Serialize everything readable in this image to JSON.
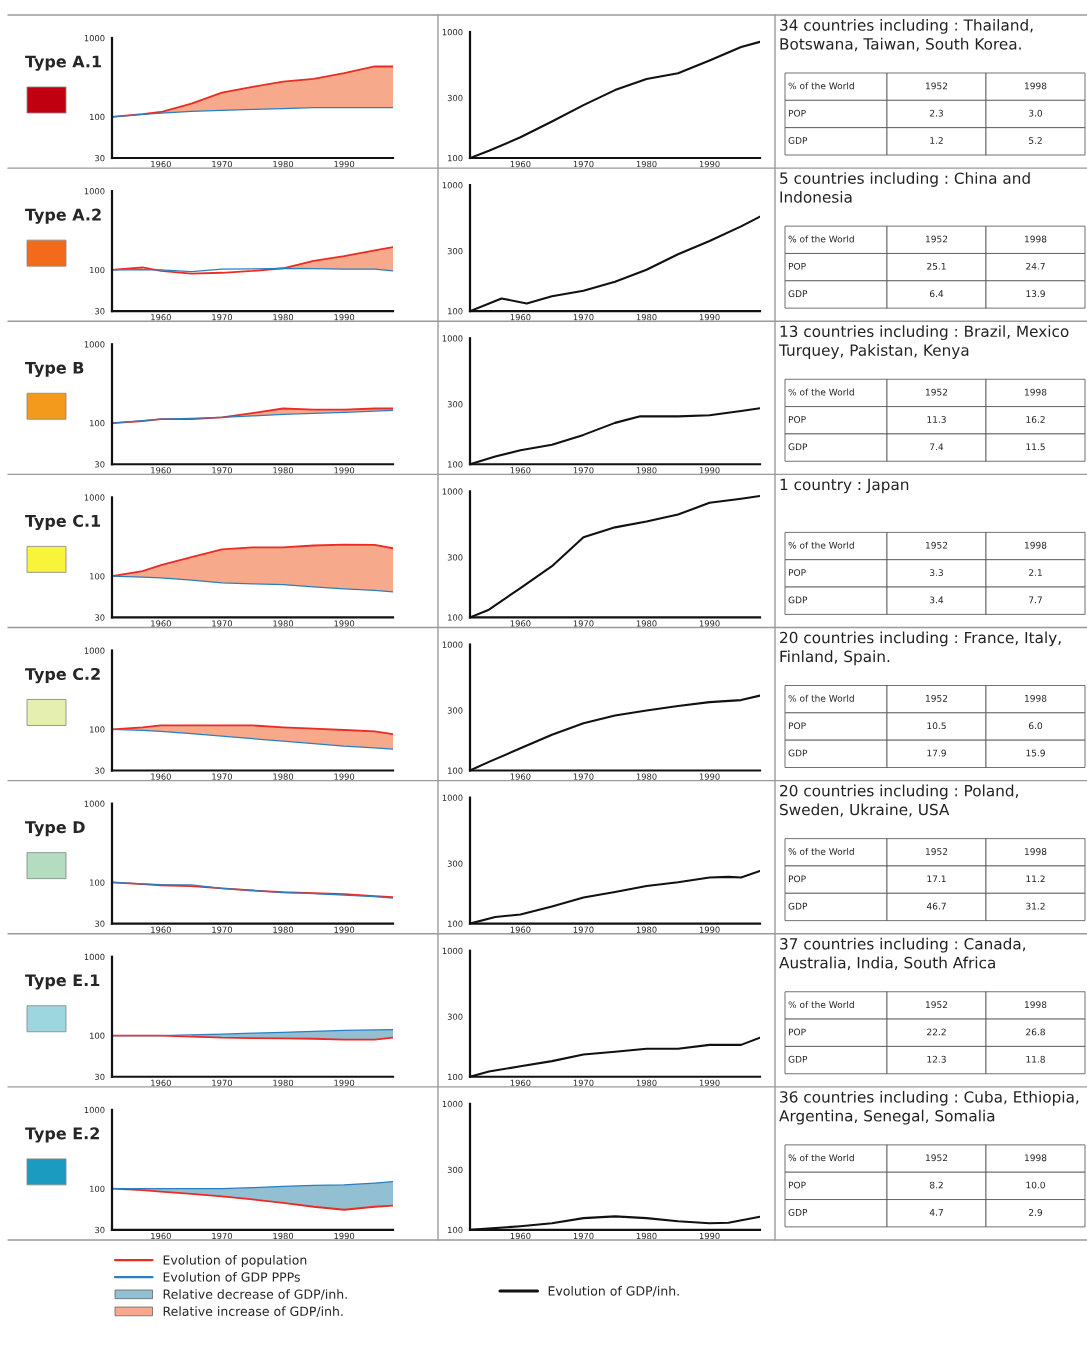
{
  "chart_data": [
    {
      "type": "line",
      "title": "Type A.1",
      "colors": [
        "#c00010",
        "#f7a98b",
        "#93bfd3"
      ],
      "x": [
        1952,
        1957,
        1960,
        1965,
        1970,
        1975,
        1980,
        1985,
        1990,
        1995,
        1998
      ],
      "log": true,
      "xlim": [
        1952,
        1998
      ],
      "ylim": [
        30,
        1000
      ],
      "xticks": [
        1960,
        1970,
        1980,
        1990
      ],
      "yticks": [
        30,
        100,
        1000
      ],
      "grid": false,
      "series": [
        {
          "color": "#ec2b24",
          "values": [
            100,
            108,
            115,
            147,
            203,
            240,
            279,
            302,
            358,
            435,
            435
          ],
          "lower": [
            100,
            107,
            111,
            117,
            121,
            124,
            127,
            131,
            131,
            131,
            131
          ],
          "upper": [
            100,
            108,
            115,
            147,
            203,
            240,
            279,
            302,
            358,
            435,
            435
          ]
        },
        {
          "color": "#2b7fc1",
          "values": [
            100,
            107,
            111,
            117,
            121,
            124,
            127,
            131,
            131,
            131,
            131
          ]
        }
      ]
    },
    {
      "type": "line",
      "x": [
        1952,
        1955,
        1960,
        1965,
        1970,
        1975,
        1980,
        1985,
        1990,
        1995,
        1998
      ],
      "log": true,
      "xlim": [
        1952,
        1998
      ],
      "ylim": [
        100,
        1000
      ],
      "xticks": [
        1960,
        1970,
        1980,
        1990
      ],
      "yticks": [
        100,
        300,
        1000
      ],
      "grid": false,
      "series": [
        {
          "color": "#111111",
          "values": [
            100,
            114,
            146,
            195,
            263,
            346,
            423,
            470,
            594,
            760,
            835
          ]
        }
      ]
    },
    {
      "type": "other",
      "title": "34 countries including : Thailand, Botswana, Taiwan, South Korea.",
      "annotations": [
        "% of the World",
        "1952",
        "1998",
        "POP",
        "2.3",
        "3.0",
        "GDP",
        "1.2",
        "5.2"
      ]
    },
    {
      "type": "line",
      "title": "Type A.2",
      "colors": [
        "#f26a1b",
        "#f7a98b",
        "#93bfd3"
      ],
      "x": [
        1952,
        1957,
        1960,
        1965,
        1970,
        1975,
        1980,
        1985,
        1990,
        1995,
        1998
      ],
      "log": true,
      "xlim": [
        1952,
        1998
      ],
      "ylim": [
        30,
        1000
      ],
      "xticks": [
        1960,
        1970,
        1980,
        1990
      ],
      "yticks": [
        30,
        100,
        1000
      ],
      "grid": false,
      "series": [
        {
          "color": "#ec2b24",
          "values": [
            100,
            108,
            97,
            90,
            92,
            97,
            105,
            130,
            150,
            177,
            195
          ],
          "lower": [
            100,
            101,
            null,
            null,
            null,
            null,
            105,
            104,
            102,
            102,
            97
          ],
          "upper": [
            100,
            108,
            null,
            null,
            null,
            null,
            105,
            130,
            150,
            177,
            195
          ]
        },
        {
          "color": "#2b7fc1",
          "values": [
            100,
            101,
            100,
            95,
            102,
            103,
            105,
            104,
            102,
            102,
            97
          ]
        }
      ]
    },
    {
      "type": "line",
      "x": [
        1952,
        1957,
        1961,
        1965,
        1970,
        1975,
        1980,
        1985,
        1990,
        1995,
        1998
      ],
      "log": true,
      "xlim": [
        1952,
        1998
      ],
      "ylim": [
        100,
        1000
      ],
      "xticks": [
        1960,
        1970,
        1980,
        1990
      ],
      "yticks": [
        100,
        300,
        1000
      ],
      "grid": false,
      "series": [
        {
          "color": "#111111",
          "values": [
            100,
            126,
            115,
            131,
            145,
            171,
            213,
            283,
            360,
            471,
            563
          ]
        }
      ]
    },
    {
      "type": "other",
      "title": "5 countries including : China and Indonesia",
      "annotations": [
        "% of the World",
        "1952",
        "1998",
        "POP",
        "25.1",
        "24.7",
        "GDP",
        "6.4",
        "13.9"
      ]
    },
    {
      "type": "line",
      "title": "Type B",
      "colors": [
        "#f39a1c",
        "#f7a98b",
        "#93bfd3"
      ],
      "x": [
        1952,
        1957,
        1960,
        1965,
        1970,
        1975,
        1980,
        1985,
        1990,
        1995,
        1998
      ],
      "log": true,
      "xlim": [
        1952,
        1998
      ],
      "ylim": [
        30,
        1000
      ],
      "xticks": [
        1960,
        1970,
        1980,
        1990
      ],
      "yticks": [
        30,
        100,
        1000
      ],
      "grid": false,
      "series": [
        {
          "color": "#ec2b24",
          "values": [
            100,
            106,
            112,
            112,
            118,
            134,
            153,
            148,
            148,
            153,
            153
          ],
          "lower": [
            null,
            null,
            null,
            null,
            118,
            123,
            129,
            133,
            137,
            142,
            145
          ],
          "upper": [
            null,
            null,
            null,
            null,
            118,
            134,
            153,
            148,
            148,
            153,
            153
          ]
        },
        {
          "color": "#2b7fc1",
          "values": [
            100,
            107,
            112,
            115,
            118,
            123,
            129,
            133,
            137,
            142,
            145
          ]
        }
      ]
    },
    {
      "type": "line",
      "x": [
        1952,
        1956,
        1960,
        1965,
        1970,
        1975,
        1979,
        1985,
        1990,
        1995,
        1998
      ],
      "log": true,
      "xlim": [
        1952,
        1998
      ],
      "ylim": [
        100,
        1000
      ],
      "xticks": [
        1960,
        1970,
        1980,
        1990
      ],
      "yticks": [
        100,
        300,
        1000
      ],
      "grid": false,
      "series": [
        {
          "color": "#111111",
          "values": [
            100,
            115,
            129,
            143,
            171,
            213,
            240,
            240,
            245,
            265,
            278
          ]
        }
      ]
    },
    {
      "type": "other",
      "title": "13 countries including : Brazil, Mexico Turquey, Pakistan, Kenya",
      "annotations": [
        "% of the World",
        "1952",
        "1998",
        "POP",
        "11.3",
        "16.2",
        "GDP",
        "7.4",
        "11.5"
      ]
    },
    {
      "type": "line",
      "title": "Type C.1",
      "colors": [
        "#f7f43a",
        "#f7a98b",
        "#93bfd3"
      ],
      "x": [
        1952,
        1957,
        1960,
        1965,
        1970,
        1975,
        1980,
        1985,
        1990,
        1995,
        1998
      ],
      "log": true,
      "xlim": [
        1952,
        1998
      ],
      "ylim": [
        30,
        1000
      ],
      "xticks": [
        1960,
        1970,
        1980,
        1990
      ],
      "yticks": [
        30,
        100,
        1000
      ],
      "grid": false,
      "series": [
        {
          "color": "#ec2b24",
          "values": [
            100,
            116,
            138,
            174,
            219,
            232,
            232,
            245,
            251,
            250,
            226
          ],
          "lower": [
            100,
            97,
            95,
            89,
            82,
            80,
            78,
            73,
            69,
            66,
            63
          ],
          "upper": [
            100,
            116,
            138,
            174,
            219,
            232,
            232,
            245,
            251,
            250,
            226
          ]
        },
        {
          "color": "#2b7fc1",
          "values": [
            100,
            97,
            95,
            89,
            82,
            80,
            78,
            73,
            69,
            66,
            63
          ]
        }
      ]
    },
    {
      "type": "line",
      "x": [
        1952,
        1955,
        1960,
        1965,
        1970,
        1975,
        1980,
        1985,
        1990,
        1995,
        1998
      ],
      "log": true,
      "xlim": [
        1952,
        1998
      ],
      "ylim": [
        100,
        1000
      ],
      "xticks": [
        1960,
        1970,
        1980,
        1990
      ],
      "yticks": [
        100,
        300,
        1000
      ],
      "grid": false,
      "series": [
        {
          "color": "#111111",
          "values": [
            100,
            115,
            171,
            255,
            433,
            518,
            576,
            655,
            811,
            873,
            918
          ]
        }
      ]
    },
    {
      "type": "other",
      "title": "1 country : Japan",
      "annotations": [
        "% of the World",
        "1952",
        "1998",
        "POP",
        "3.3",
        "2.1",
        "GDP",
        "3.4",
        "7.7"
      ]
    },
    {
      "type": "line",
      "title": "Type C.2",
      "colors": [
        "#e4efb0",
        "#f7a98b",
        "#93bfd3"
      ],
      "x": [
        1952,
        1957,
        1960,
        1965,
        1970,
        1975,
        1980,
        1985,
        1990,
        1995,
        1998
      ],
      "log": true,
      "xlim": [
        1952,
        1998
      ],
      "ylim": [
        30,
        1000
      ],
      "xticks": [
        1960,
        1970,
        1980,
        1990
      ],
      "yticks": [
        30,
        100,
        1000
      ],
      "grid": false,
      "series": [
        {
          "color": "#ec2b24",
          "values": [
            100,
            106,
            112,
            112,
            112,
            112,
            106,
            102,
            98,
            94,
            87
          ],
          "lower": [
            100,
            97,
            94,
            88,
            82,
            76,
            71,
            66,
            61,
            58,
            56
          ],
          "upper": [
            100,
            106,
            112,
            112,
            112,
            112,
            106,
            102,
            98,
            94,
            87
          ]
        },
        {
          "color": "#2b7fc1",
          "values": [
            100,
            97,
            94,
            88,
            82,
            76,
            71,
            66,
            61,
            58,
            56
          ]
        }
      ]
    },
    {
      "type": "line",
      "x": [
        1952,
        1955,
        1960,
        1965,
        1970,
        1975,
        1980,
        1985,
        1990,
        1995,
        1998
      ],
      "log": true,
      "xlim": [
        1952,
        1998
      ],
      "ylim": [
        100,
        1000
      ],
      "xticks": [
        1960,
        1970,
        1980,
        1990
      ],
      "yticks": [
        100,
        300,
        1000
      ],
      "grid": false,
      "series": [
        {
          "color": "#111111",
          "values": [
            100,
            117,
            150,
            192,
            237,
            273,
            299,
            325,
            349,
            362,
            393
          ]
        }
      ]
    },
    {
      "type": "other",
      "title": "20 countries including : France, Italy, Finland, Spain.",
      "annotations": [
        "% of the World",
        "1952",
        "1998",
        "POP",
        "10.5",
        "6.0",
        "GDP",
        "17.9",
        "15.9"
      ]
    },
    {
      "type": "line",
      "title": "Type D",
      "colors": [
        "#b4dcc0"
      ],
      "x": [
        1952,
        1957,
        1960,
        1965,
        1970,
        1975,
        1980,
        1985,
        1990,
        1995,
        1998
      ],
      "log": true,
      "xlim": [
        1952,
        1998
      ],
      "ylim": [
        30,
        1000
      ],
      "xticks": [
        1960,
        1970,
        1980,
        1990
      ],
      "yticks": [
        30,
        100,
        1000
      ],
      "grid": false,
      "series": [
        {
          "color": "#ec2b24",
          "values": [
            100,
            95,
            92,
            90,
            84,
            79,
            75,
            73,
            71,
            67,
            65
          ]
        },
        {
          "color": "#2b7fc1",
          "values": [
            100,
            96,
            94,
            93,
            84,
            79,
            75,
            72,
            69,
            66,
            63
          ]
        }
      ]
    },
    {
      "type": "line",
      "x": [
        1952,
        1956,
        1960,
        1965,
        1970,
        1975,
        1980,
        1985,
        1990,
        1993,
        1995,
        1998
      ],
      "log": true,
      "xlim": [
        1952,
        1998
      ],
      "ylim": [
        100,
        1000
      ],
      "xticks": [
        1960,
        1970,
        1980,
        1990
      ],
      "yticks": [
        100,
        300,
        1000
      ],
      "grid": false,
      "series": [
        {
          "color": "#111111",
          "values": [
            100,
            113,
            118,
            137,
            161,
            178,
            199,
            213,
            232,
            235,
            232,
            262
          ]
        }
      ]
    },
    {
      "type": "other",
      "title": "20 countries including : Poland, Sweden, Ukraine, USA",
      "annotations": [
        "% of the World",
        "1952",
        "1998",
        "POP",
        "17.1",
        "11.2",
        "GDP",
        "46.7",
        "31.2"
      ]
    },
    {
      "type": "line",
      "title": "Type E.1",
      "colors": [
        "#9dd6de",
        "#f7a98b",
        "#93bfd3"
      ],
      "x": [
        1952,
        1957,
        1960,
        1965,
        1970,
        1975,
        1980,
        1985,
        1990,
        1995,
        1998
      ],
      "log": true,
      "xlim": [
        1952,
        1998
      ],
      "ylim": [
        30,
        1000
      ],
      "xticks": [
        1960,
        1970,
        1980,
        1990
      ],
      "yticks": [
        30,
        100,
        1000
      ],
      "grid": false,
      "series": [
        {
          "color": "#ec2b24",
          "values": [
            100,
            100,
            100,
            97,
            94,
            93,
            92,
            91,
            89,
            89,
            94
          ],
          "lower": [
            null,
            null,
            null,
            102,
            104,
            107,
            110,
            113,
            116,
            118,
            119
          ],
          "upper": [
            null,
            null,
            null,
            97,
            94,
            93,
            92,
            91,
            89,
            89,
            94
          ]
        },
        {
          "color": "#2b7fc1",
          "values": [
            100,
            100,
            100,
            102,
            104,
            107,
            110,
            113,
            116,
            118,
            119
          ]
        }
      ]
    },
    {
      "type": "line",
      "x": [
        1952,
        1955,
        1960,
        1965,
        1970,
        1975,
        1980,
        1985,
        1990,
        1995,
        1998
      ],
      "log": true,
      "xlim": [
        1952,
        1998
      ],
      "ylim": [
        100,
        1000
      ],
      "xticks": [
        1960,
        1970,
        1980,
        1990
      ],
      "yticks": [
        100,
        300,
        1000
      ],
      "grid": false,
      "series": [
        {
          "color": "#111111",
          "values": [
            100,
            110,
            121,
            133,
            150,
            158,
            167,
            167,
            179,
            179,
            204
          ]
        }
      ]
    },
    {
      "type": "other",
      "title": "37 countries including : Canada, Australia, India, South Africa",
      "annotations": [
        "% of the World",
        "1952",
        "1998",
        "POP",
        "22.2",
        "26.8",
        "GDP",
        "12.3",
        "11.8"
      ]
    },
    {
      "type": "line",
      "title": "Type E.2",
      "colors": [
        "#1a9bbf",
        "#f7a98b",
        "#93bfd3"
      ],
      "x": [
        1952,
        1957,
        1960,
        1965,
        1970,
        1975,
        1980,
        1985,
        1990,
        1995,
        1998
      ],
      "log": true,
      "xlim": [
        1952,
        1998
      ],
      "ylim": [
        30,
        1000
      ],
      "xticks": [
        1960,
        1970,
        1980,
        1990
      ],
      "yticks": [
        30,
        100,
        1000
      ],
      "grid": false,
      "series": [
        {
          "color": "#ec2b24",
          "values": [
            100,
            96,
            92,
            86,
            80,
            73,
            66,
            59,
            54,
            59,
            61
          ],
          "lower": [
            100,
            100,
            100,
            100,
            100,
            103,
            107,
            110,
            112,
            118,
            123
          ],
          "upper": [
            100,
            96,
            92,
            86,
            80,
            73,
            66,
            59,
            54,
            59,
            61
          ]
        },
        {
          "color": "#2b7fc1",
          "values": [
            100,
            100,
            100,
            100,
            100,
            103,
            107,
            110,
            112,
            118,
            123
          ]
        }
      ]
    },
    {
      "type": "line",
      "x": [
        1952,
        1960,
        1965,
        1970,
        1975,
        1980,
        1985,
        1990,
        1993,
        1998
      ],
      "log": true,
      "xlim": [
        1952,
        1998
      ],
      "ylim": [
        100,
        1000
      ],
      "xticks": [
        1960,
        1970,
        1980,
        1990
      ],
      "yticks": [
        100,
        300,
        1000
      ],
      "grid": false,
      "series": [
        {
          "color": "#111111",
          "values": [
            100,
            107,
            113,
            124,
            128,
            124,
            117,
            113,
            114,
            127
          ]
        }
      ]
    },
    {
      "type": "other",
      "title": "36 countries including : Cuba, Ethiopia, Argentina, Senegal, Somalia",
      "annotations": [
        "% of the World",
        "1952",
        "1998",
        "POP",
        "8.2",
        "10.0",
        "GDP",
        "4.7",
        "2.9"
      ]
    },
    {
      "type": "other",
      "legend": "bottom",
      "series": [
        {
          "type": "line",
          "name": "Evolution of population",
          "color": "#ec2b24"
        },
        {
          "type": "line",
          "name": "Evolution of GDP PPPs",
          "color": "#2b7fc1"
        },
        {
          "type": "area",
          "name": "Relative decrease of GDP/inh.",
          "color": "#93bfd3"
        },
        {
          "type": "area",
          "name": "Relative increase of GDP/inh.",
          "color": "#f7a98b"
        },
        {
          "type": "line",
          "name": "Evolution of GDP/inh.",
          "color": "#111111"
        }
      ]
    }
  ]
}
